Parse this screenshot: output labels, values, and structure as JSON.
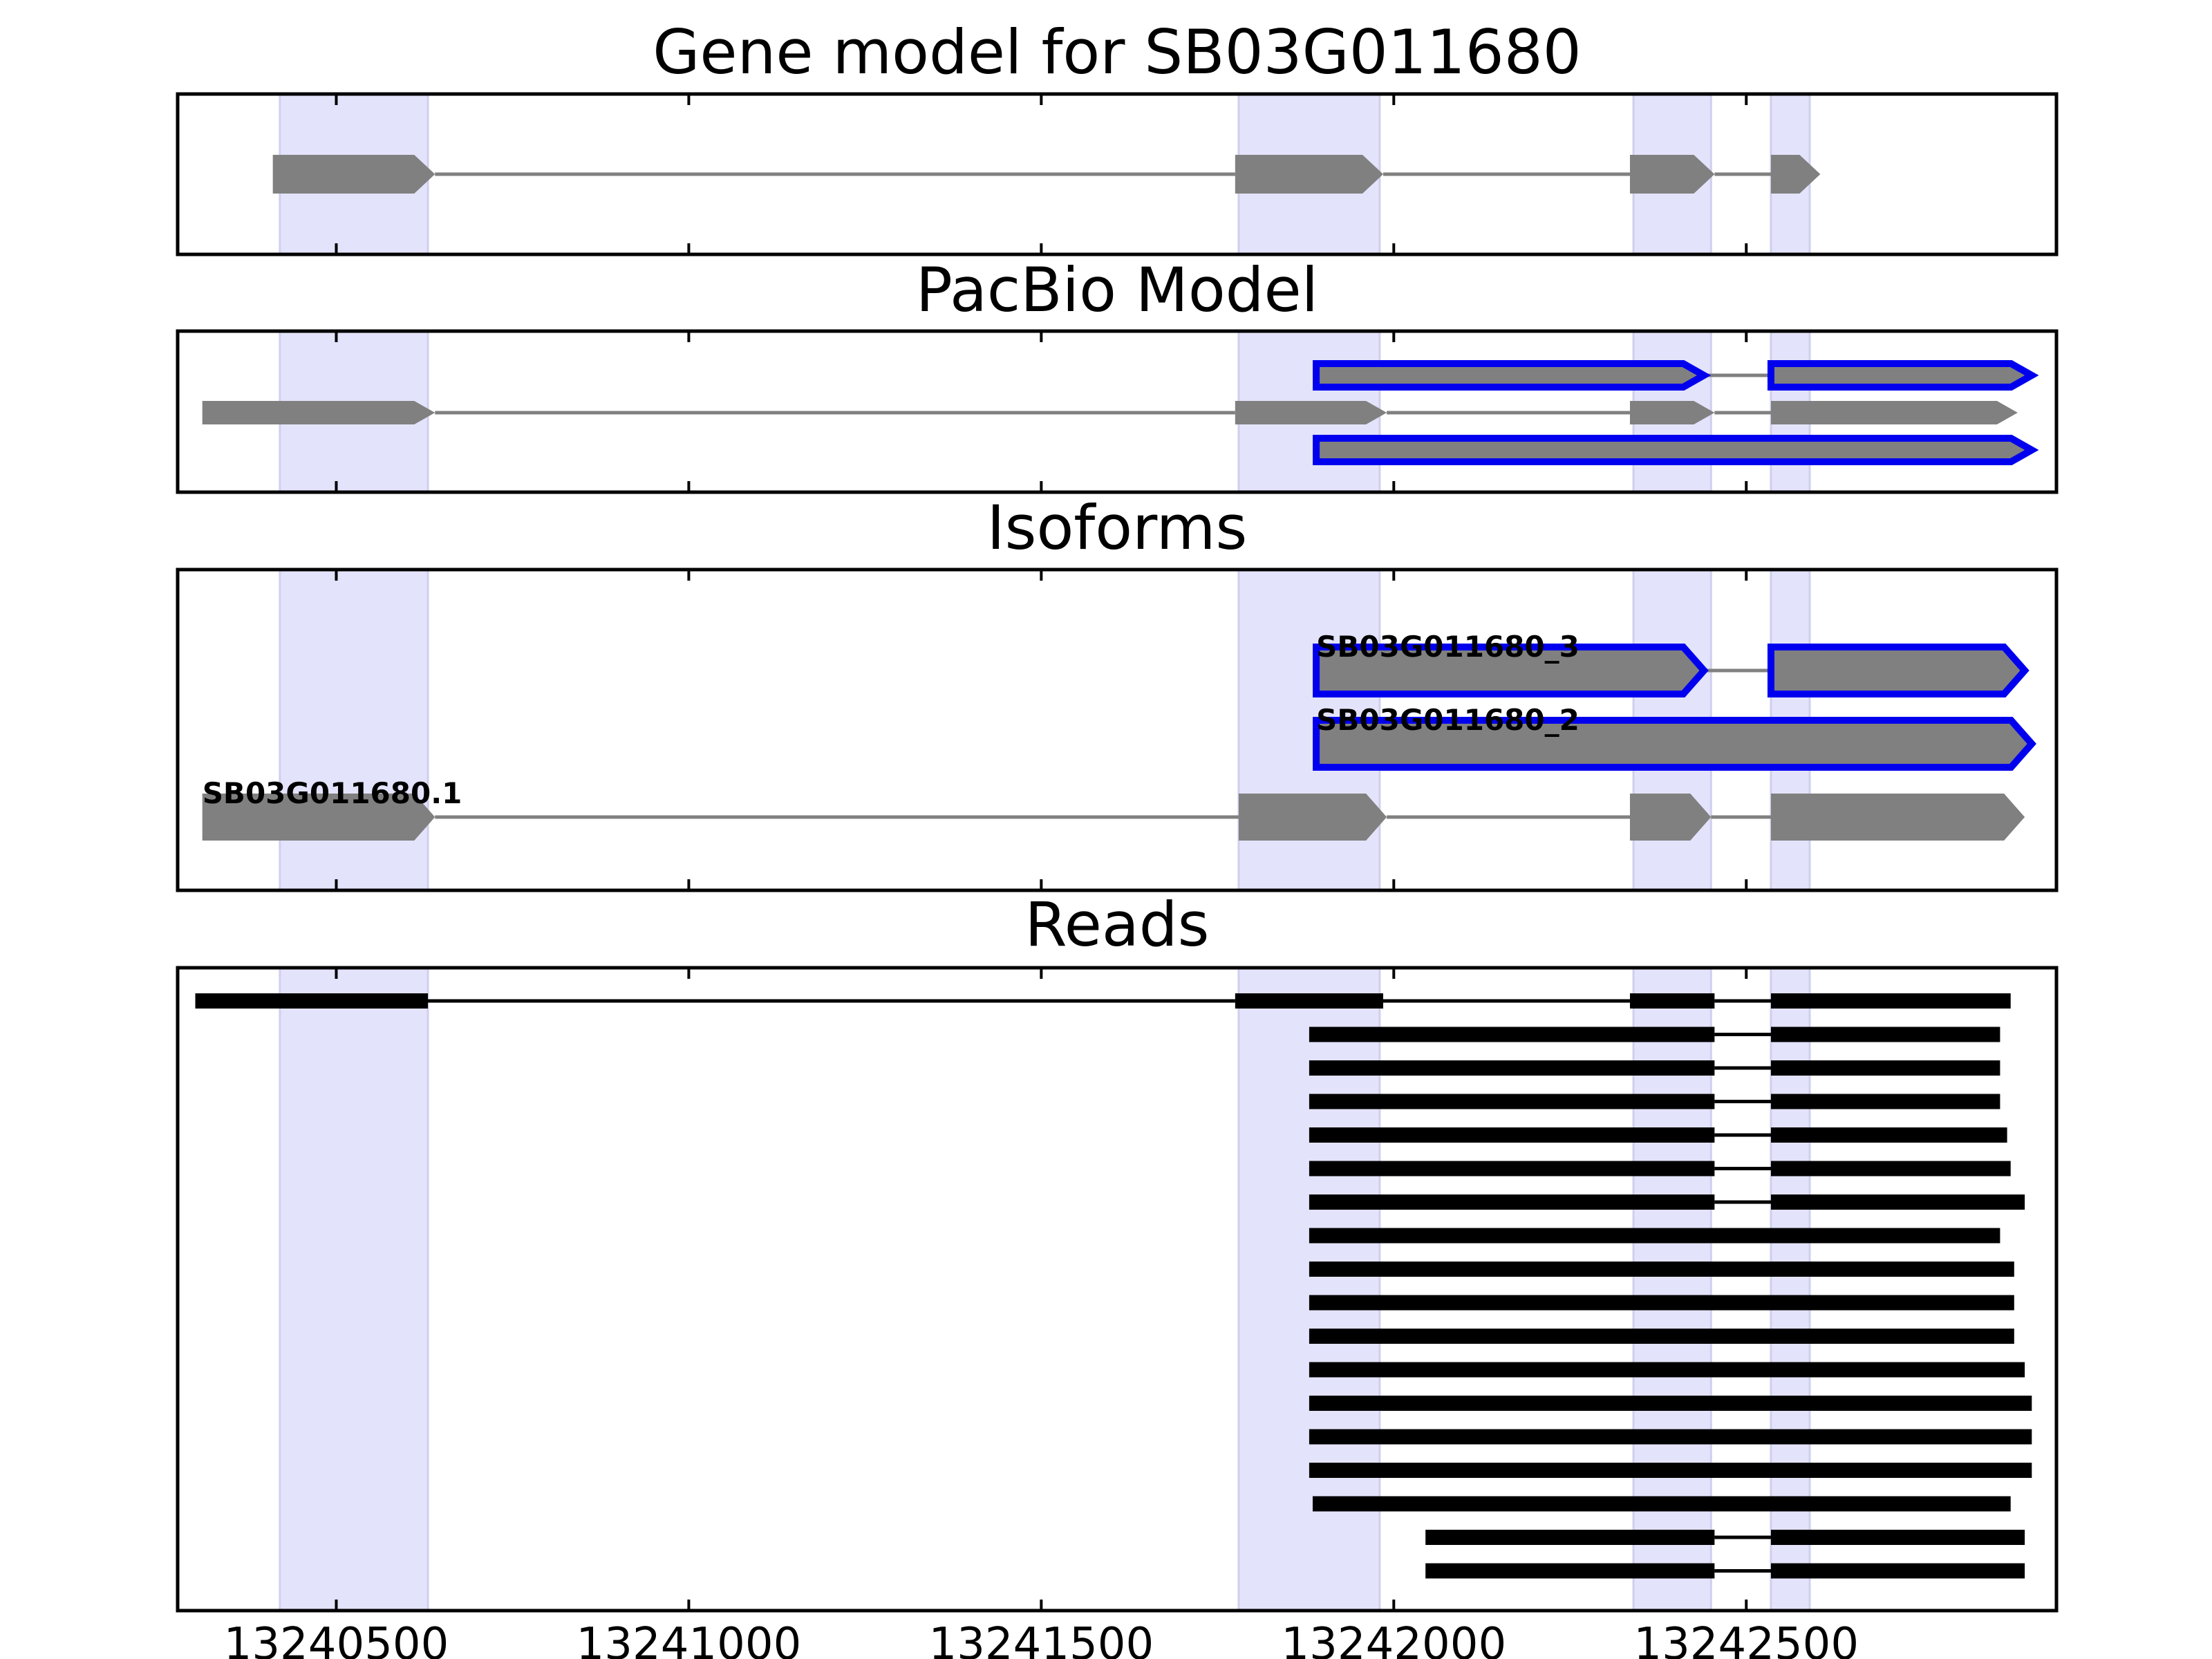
{
  "chart_data": {
    "type": "gene_structure",
    "x_axis": {
      "ticks": [
        13240500,
        13241000,
        13241500,
        13242000,
        13242500
      ],
      "tick_labels": [
        "13240500",
        "13241000",
        "13241500",
        "13242000",
        "13242500"
      ],
      "xlim": [
        13240275,
        13242940
      ]
    },
    "shaded_regions": [
      [
        13240420,
        13240630
      ],
      [
        13241780,
        13241980
      ],
      [
        13242340,
        13242450
      ],
      [
        13242535,
        13242590
      ]
    ],
    "panels": [
      {
        "title": "Gene model for SB03G011680",
        "row_count": 1,
        "tracks": [
          {
            "row": 0,
            "highlight": false,
            "label": "",
            "exons": [
              [
                13240410,
                13240640
              ],
              [
                13241775,
                13241985
              ],
              [
                13242335,
                13242455
              ],
              [
                13242535,
                13242605
              ]
            ]
          }
        ]
      },
      {
        "title": "PacBio Model",
        "row_count": 3,
        "tracks": [
          {
            "row": 0,
            "highlight": true,
            "label": "",
            "exons": [
              [
                13241890,
                13242440
              ],
              [
                13242535,
                13242905
              ]
            ]
          },
          {
            "row": 1,
            "highlight": false,
            "label": "",
            "exons": [
              [
                13240310,
                13240640
              ],
              [
                13241775,
                13241990
              ],
              [
                13242335,
                13242455
              ],
              [
                13242535,
                13242885
              ]
            ]
          },
          {
            "row": 2,
            "highlight": true,
            "label": "",
            "exons": [
              [
                13241890,
                13242905
              ]
            ]
          }
        ]
      },
      {
        "title": "Isoforms",
        "row_count": 3,
        "tracks": [
          {
            "row": 0,
            "highlight": true,
            "label": "SB03G011680_3",
            "exons": [
              [
                13241890,
                13242440
              ],
              [
                13242535,
                13242895
              ]
            ]
          },
          {
            "row": 1,
            "highlight": true,
            "label": "SB03G011680_2",
            "exons": [
              [
                13241890,
                13242905
              ]
            ]
          },
          {
            "row": 2,
            "highlight": false,
            "label": "SB03G011680.1",
            "exons": [
              [
                13240310,
                13240640
              ],
              [
                13241780,
                13241990
              ],
              [
                13242335,
                13242450
              ],
              [
                13242535,
                13242895
              ]
            ]
          }
        ]
      },
      {
        "title": "Reads",
        "row_count": 18,
        "tracks": [
          {
            "row": 0,
            "highlight": false,
            "label": "",
            "exons": [
              [
                13240300,
                13240630
              ],
              [
                13241775,
                13241985
              ],
              [
                13242335,
                13242455
              ],
              [
                13242535,
                13242875
              ]
            ]
          },
          {
            "row": 1,
            "highlight": false,
            "label": "",
            "exons": [
              [
                13241880,
                13242455
              ],
              [
                13242535,
                13242860
              ]
            ]
          },
          {
            "row": 2,
            "highlight": false,
            "label": "",
            "exons": [
              [
                13241880,
                13242455
              ],
              [
                13242535,
                13242860
              ]
            ]
          },
          {
            "row": 3,
            "highlight": false,
            "label": "",
            "exons": [
              [
                13241880,
                13242455
              ],
              [
                13242535,
                13242860
              ]
            ]
          },
          {
            "row": 4,
            "highlight": false,
            "label": "",
            "exons": [
              [
                13241880,
                13242455
              ],
              [
                13242535,
                13242870
              ]
            ]
          },
          {
            "row": 5,
            "highlight": false,
            "label": "",
            "exons": [
              [
                13241880,
                13242455
              ],
              [
                13242535,
                13242875
              ]
            ]
          },
          {
            "row": 6,
            "highlight": false,
            "label": "",
            "exons": [
              [
                13241880,
                13242455
              ],
              [
                13242535,
                13242895
              ]
            ]
          },
          {
            "row": 7,
            "highlight": false,
            "label": "",
            "exons": [
              [
                13241880,
                13242860
              ]
            ]
          },
          {
            "row": 8,
            "highlight": false,
            "label": "",
            "exons": [
              [
                13241880,
                13242880
              ]
            ]
          },
          {
            "row": 9,
            "highlight": false,
            "label": "",
            "exons": [
              [
                13241880,
                13242880
              ]
            ]
          },
          {
            "row": 10,
            "highlight": false,
            "label": "",
            "exons": [
              [
                13241880,
                13242880
              ]
            ]
          },
          {
            "row": 11,
            "highlight": false,
            "label": "",
            "exons": [
              [
                13241880,
                13242895
              ]
            ]
          },
          {
            "row": 12,
            "highlight": false,
            "label": "",
            "exons": [
              [
                13241880,
                13242905
              ]
            ]
          },
          {
            "row": 13,
            "highlight": false,
            "label": "",
            "exons": [
              [
                13241880,
                13242905
              ]
            ]
          },
          {
            "row": 14,
            "highlight": false,
            "label": "",
            "exons": [
              [
                13241880,
                13242905
              ]
            ]
          },
          {
            "row": 15,
            "highlight": false,
            "label": "",
            "exons": [
              [
                13241885,
                13242875
              ]
            ]
          },
          {
            "row": 16,
            "highlight": false,
            "label": "",
            "exons": [
              [
                13242045,
                13242455
              ],
              [
                13242535,
                13242895
              ]
            ]
          },
          {
            "row": 17,
            "highlight": false,
            "label": "",
            "exons": [
              [
                13242045,
                13242455
              ],
              [
                13242535,
                13242895
              ]
            ]
          }
        ]
      }
    ]
  }
}
